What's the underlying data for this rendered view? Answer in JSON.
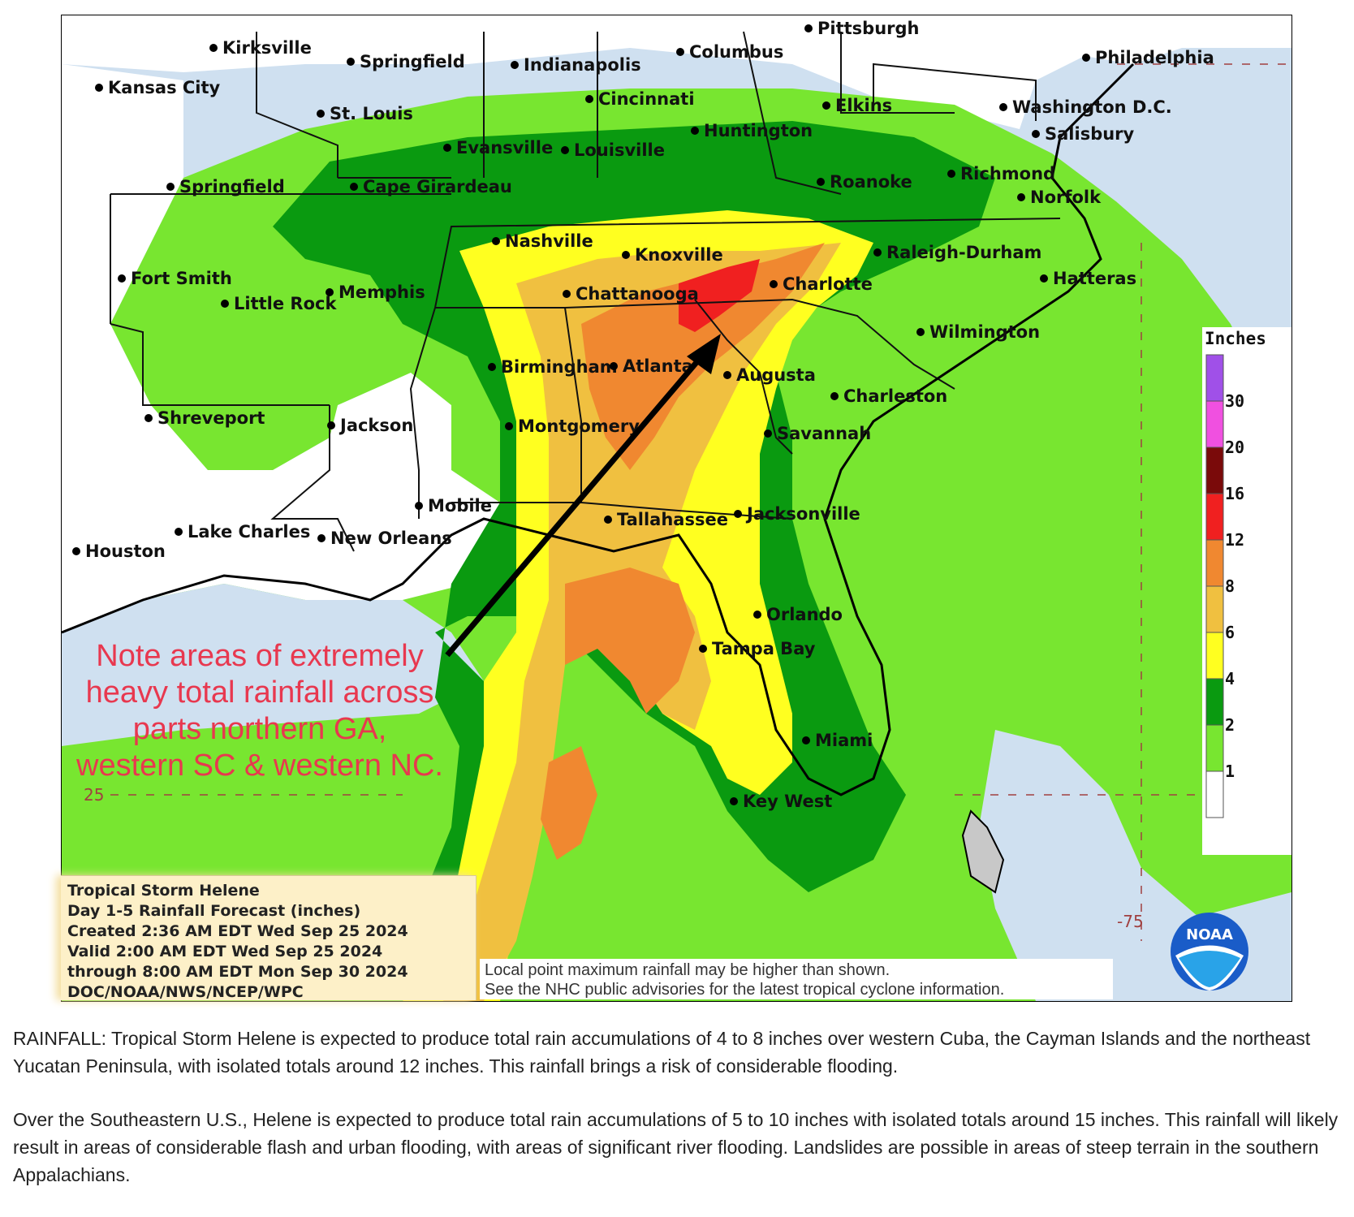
{
  "map": {
    "legend": {
      "title": "Inches",
      "bins": [
        {
          "label": "",
          "color": "#a050e8"
        },
        {
          "label": "30",
          "color": "#f050e0"
        },
        {
          "label": "20",
          "color": "#7a0a0a"
        },
        {
          "label": "16",
          "color": "#f02020"
        },
        {
          "label": "12",
          "color": "#f08830"
        },
        {
          "label": "8",
          "color": "#f0c040"
        },
        {
          "label": "6",
          "color": "#ffff20"
        },
        {
          "label": "4",
          "color": "#0a9a10"
        },
        {
          "label": "2",
          "color": "#78e630"
        },
        {
          "label": "1",
          "color": "#ffffff"
        }
      ]
    },
    "colors": {
      "ocean": "#cfe0f0",
      "land_none": "#ffffff",
      "band_1_2": "#78e630",
      "band_2_4": "#0a9a10",
      "band_4_6": "#ffff20",
      "band_6_8": "#f0c040",
      "band_8_12": "#f08830",
      "band_12_16": "#f02020",
      "cuba_gray": "#c8c8c8"
    },
    "cities": [
      {
        "name": "Kirksville"
      },
      {
        "name": "Springfield"
      },
      {
        "name": "Indianapolis"
      },
      {
        "name": "Columbus"
      },
      {
        "name": "Pittsburgh"
      },
      {
        "name": "Philadelphia"
      },
      {
        "name": "Kansas City"
      },
      {
        "name": "St. Louis"
      },
      {
        "name": "Cincinnati"
      },
      {
        "name": "Elkins"
      },
      {
        "name": "Washington D.C."
      },
      {
        "name": "Salisbury"
      },
      {
        "name": "Evansville"
      },
      {
        "name": "Louisville"
      },
      {
        "name": "Huntington"
      },
      {
        "name": "Springfield"
      },
      {
        "name": "Cape Girardeau"
      },
      {
        "name": "Roanoke"
      },
      {
        "name": "Richmond"
      },
      {
        "name": "Norfolk"
      },
      {
        "name": "Nashville"
      },
      {
        "name": "Knoxville"
      },
      {
        "name": "Raleigh-Durham"
      },
      {
        "name": "Fort Smith"
      },
      {
        "name": "Memphis"
      },
      {
        "name": "Chattanooga"
      },
      {
        "name": "Charlotte"
      },
      {
        "name": "Hatteras"
      },
      {
        "name": "Little Rock"
      },
      {
        "name": "Wilmington"
      },
      {
        "name": "Birmingham"
      },
      {
        "name": "Atlanta"
      },
      {
        "name": "Augusta"
      },
      {
        "name": "Charleston"
      },
      {
        "name": "Shreveport"
      },
      {
        "name": "Jackson"
      },
      {
        "name": "Montgomery"
      },
      {
        "name": "Savannah"
      },
      {
        "name": "Mobile"
      },
      {
        "name": "Tallahassee"
      },
      {
        "name": "Jacksonville"
      },
      {
        "name": "Lake Charles"
      },
      {
        "name": "New Orleans"
      },
      {
        "name": "Houston"
      },
      {
        "name": "Orlando"
      },
      {
        "name": "Tampa Bay"
      },
      {
        "name": "Miami"
      },
      {
        "name": "Key West"
      }
    ],
    "grid_labels": {
      "lat": "25",
      "lon": "-75"
    },
    "info": {
      "line1": "Tropical Storm Helene",
      "line2": "Day 1-5 Rainfall Forecast (inches)",
      "line3": "Created 2:36 AM EDT Wed Sep 25 2024",
      "line4": "Valid 2:00 AM EDT Wed Sep 25 2024",
      "line5": "through 8:00 AM EDT Mon Sep 30 2024",
      "line6": "DOC/NOAA/NWS/NCEP/WPC"
    },
    "disclaimer": {
      "line1": "Local point maximum rainfall may be higher than shown.",
      "line2": "See the NHC public advisories for the latest tropical cyclone information."
    },
    "note": {
      "line1": "Note areas of extremely",
      "line2": "heavy total rainfall across",
      "line3": "parts northern GA,",
      "line4": "western SC & western NC."
    },
    "logo_text": "NOAA"
  },
  "caption": {
    "p1": "RAINFALL: Tropical Storm Helene is expected to produce total rain accumulations of 4 to 8 inches over western Cuba, the Cayman Islands and the northeast Yucatan Peninsula, with isolated totals around 12 inches. This rainfall brings a risk of considerable flooding.",
    "p2": "Over the Southeastern U.S., Helene is expected to produce total rain accumulations of 5 to 10 inches with isolated totals around 15 inches. This rainfall will likely result in areas of considerable flash and urban flooding, with areas of significant river flooding. Landslides are possible in areas of steep terrain in the southern Appalachians."
  }
}
